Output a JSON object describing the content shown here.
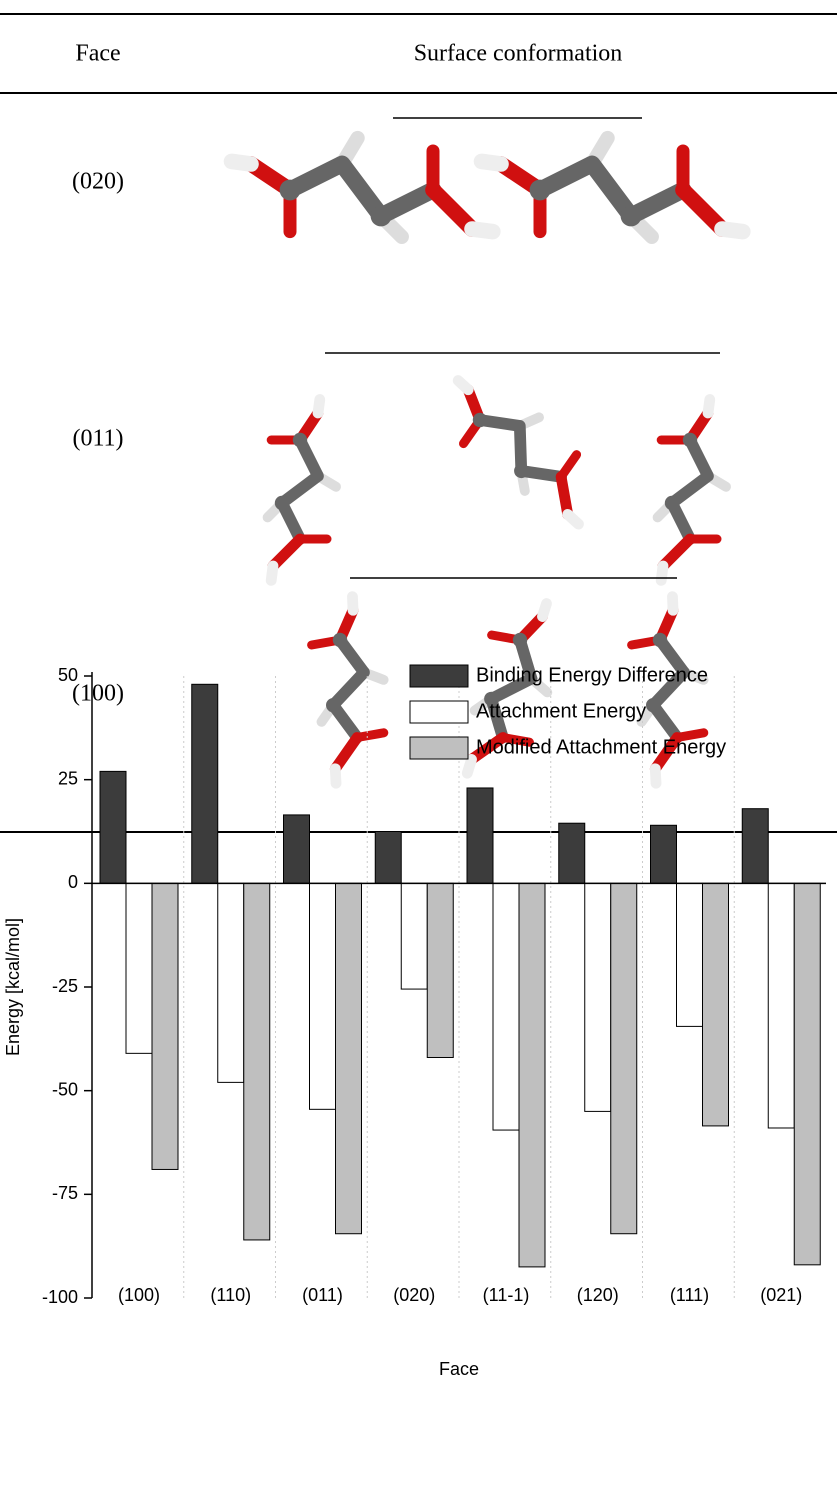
{
  "table": {
    "headers": [
      "Face",
      "Surface conformation"
    ],
    "rows": [
      "(020)",
      "(011)",
      "(100)"
    ]
  },
  "chart_data": {
    "type": "bar",
    "x_label": "Face",
    "y_label": "Energy [kcal/mol]",
    "categories": [
      "(100)",
      "(110)",
      "(011)",
      "(020)",
      "(11-1)",
      "(120)",
      "(111)",
      "(021)"
    ],
    "series": [
      {
        "name": "Binding Energy Difference",
        "color": "#3c3c3c",
        "values": [
          27,
          48,
          16.5,
          12.5,
          23,
          14.5,
          14,
          18
        ]
      },
      {
        "name": "Attachment Energy",
        "color": "#ffffff",
        "values": [
          -41,
          -48,
          -54.5,
          -25.5,
          -59.5,
          -55,
          -34.5,
          -59
        ]
      },
      {
        "name": "Modified Attachment Energy",
        "color": "#bfbfbf",
        "values": [
          -69,
          -86,
          -84.5,
          -42,
          -92.5,
          -84.5,
          -58.5,
          -92
        ]
      }
    ],
    "ylim": [
      -100,
      50
    ],
    "yticks": [
      -100,
      -75,
      -50,
      -25,
      0,
      25,
      50
    ],
    "legend": "upper right"
  }
}
